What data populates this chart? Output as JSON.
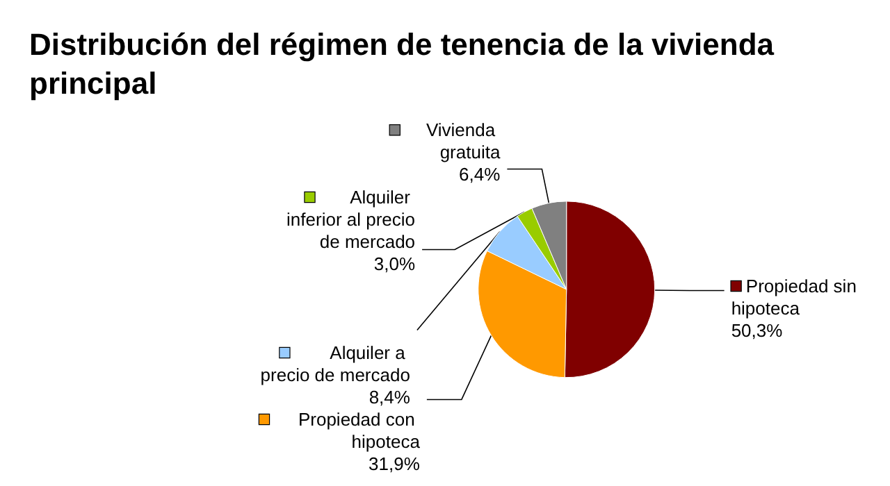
{
  "chart_data": {
    "type": "pie",
    "title": "Distribución del régimen de tenencia de la vivienda principal",
    "categories": [
      "Propiedad sin hipoteca",
      "Propiedad con hipoteca",
      "Alquiler a precio de mercado",
      "Alquiler inferior al precio de mercado",
      "Vivienda gratuita"
    ],
    "values": [
      50.3,
      31.9,
      8.4,
      3.0,
      6.4
    ],
    "value_labels": [
      "50,3%",
      "31,9%",
      "8,4%",
      "3,0%",
      "6,4%"
    ],
    "colors": [
      "#800000",
      "#ff9900",
      "#99ccff",
      "#99cc00",
      "#808080"
    ],
    "legend": "top left"
  }
}
